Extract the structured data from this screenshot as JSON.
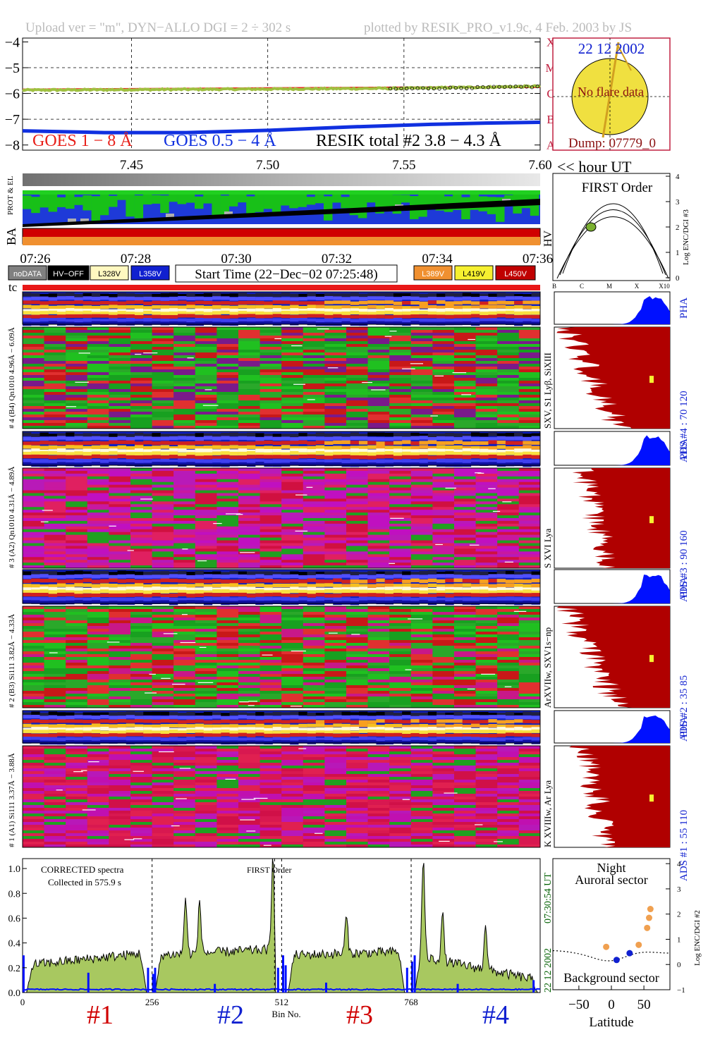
{
  "header": {
    "left": "Upload ver = \"m\", DYN−ALLO DGI = 2 ÷ 302 s",
    "right": "plotted by RESIK_PRO_v1.9c, 4 Feb. 2003 by JS"
  },
  "colors": {
    "goes_long": "#e8201a",
    "goes_short": "#1030e0",
    "resik_green": "#9fc040",
    "spectrum_fill": "#a8c860",
    "pha_blue": "#0010ff",
    "ads_red": "#b00000",
    "date_blue": "#1020d0",
    "dump_brown": "#8a1010",
    "sun_yellow": "#f0e040",
    "frame_red": "#c02040",
    "green_ut": "#006000"
  },
  "chart_data": [
    {
      "type": "line",
      "name": "lightcurves",
      "legend": [
        "GOES 1 − 8 Å",
        "GOES 0.5 − 4 Å",
        "RESIK total #2  3.8 − 4.3 Å"
      ],
      "x_ticks": [
        7.45,
        7.5,
        7.55,
        7.6
      ],
      "x_tick_labels": [
        "7.45",
        "7.50",
        "7.55",
        "7.60"
      ],
      "xlabel": "<< hour UT",
      "xlim": [
        7.41,
        7.6
      ],
      "ylim": [
        -8.2,
        -3.85
      ],
      "y_ticks": [
        -4,
        -5,
        -6,
        -7,
        -8
      ],
      "y_tick_labels": [
        "−4",
        "−5",
        "−6",
        "−7",
        "−8"
      ],
      "right_ticks": [
        "X",
        "M",
        "C",
        "B",
        "A"
      ],
      "series": [
        {
          "name": "GOES 1 − 8 Å",
          "x": [
            7.41,
            7.45,
            7.5,
            7.55,
            7.6
          ],
          "y": [
            -5.85,
            -5.83,
            -5.8,
            -5.77,
            -5.75
          ]
        },
        {
          "name": "GOES 0.5 − 4 Å",
          "x": [
            7.41,
            7.44,
            7.47,
            7.5,
            7.53,
            7.56,
            7.58,
            7.6
          ],
          "y": [
            -7.45,
            -7.52,
            -7.52,
            -7.43,
            -7.3,
            -7.2,
            -7.15,
            -7.12
          ]
        },
        {
          "name": "RESIK total #2  3.8 − 4.3 Å",
          "x": [
            7.41,
            7.45,
            7.5,
            7.55,
            7.6
          ],
          "y": [
            -5.87,
            -5.85,
            -5.83,
            -5.8,
            -5.72
          ]
        }
      ]
    },
    {
      "type": "scatter",
      "name": "sun_disc",
      "date": "22 12 2002",
      "note": "No flare data",
      "dump": "Dump: 07779_0"
    },
    {
      "type": "line",
      "name": "first_order",
      "title": "FIRST Order",
      "ylabel": "Log ENC/DGI #3",
      "y_ticks": [
        "0",
        "1",
        "2",
        "3",
        "4"
      ],
      "x_ticks": [
        "B",
        "C",
        "M",
        "X",
        "X10"
      ]
    },
    {
      "type": "heatmap",
      "name": "status_strips",
      "axis_labels": [
        "PROT & EL",
        "BA",
        "HV"
      ],
      "time_ticks": [
        "07:26",
        "07:28",
        "07:30",
        "07:32",
        "07:34",
        "07:36"
      ],
      "legend_left": [
        "noDATA",
        "HV−OFF",
        "L328V",
        "L358V"
      ],
      "legend_right": [
        "L389V",
        "L419V",
        "L450V"
      ],
      "start_time": "Start Time (22−Dec−02 07:25:48)",
      "tc": "tc"
    },
    {
      "type": "heatmap",
      "name": "spectrograms",
      "channels": [
        {
          "pha_label": "# 4 (B4) Qn1010 4.96Å − 6.09Å",
          "right_label": "SXV, S1 Lyβ, SiXIII",
          "ads": "ADS #4 :   70  120",
          "pha": "PHA"
        },
        {
          "pha_label": "# 3 (A2) Qn1010 4.31Å − 4.89Å",
          "right_label": "S XVI Lya",
          "ads": "ADS #3 :   90  160",
          "pha": "PHA"
        },
        {
          "pha_label": "# 2 (B3) Si111 3.82Å − 4.33Å",
          "right_label": "ArXVIIw, SXV1s−np",
          "ads": "ADS #2 :   35  85",
          "pha": "PHA"
        },
        {
          "pha_label": "# 1 (A1) Si111 3.37Å − 3.88Å",
          "right_label": "K XVIIIw, Ar Lya",
          "ads": "ADS #1 :   55  110",
          "pha": "PHA"
        }
      ]
    },
    {
      "type": "area",
      "name": "corrected_spectra",
      "note1": "CORRECTED spectra",
      "note2": "Collected in   575.9 s",
      "first_order": "FIRST Order",
      "y_ticks": [
        "0.0",
        "0.2",
        "0.4",
        "0.6",
        "0.8",
        "1.0"
      ],
      "ylim": [
        0,
        1.08
      ],
      "xlim": [
        0,
        1023
      ],
      "x_ticks": [
        "0",
        "256",
        "512",
        "768"
      ],
      "xlabel": "Bin No.",
      "channel_labels": [
        "#1",
        "#2",
        "#3",
        "#4"
      ],
      "ut": "07:30:54 UT",
      "date": "22 12 2002"
    },
    {
      "type": "scatter",
      "name": "latitude",
      "title1": "Night",
      "title2": "Auroral sector",
      "bottom_label": "Background sector",
      "xlabel": "Latitude",
      "ylabel": "Log ENC/DGI #2",
      "x_ticks": [
        "−50",
        "0",
        "50"
      ],
      "y_ticks": [
        "−1",
        "0",
        "1",
        "2",
        "3",
        "4"
      ],
      "orange_points": [
        [
          -8,
          0.7
        ],
        [
          42,
          0.78
        ],
        [
          55,
          1.45
        ],
        [
          58,
          1.85
        ],
        [
          60,
          2.2
        ]
      ],
      "blue_points": [
        [
          8,
          0.18
        ],
        [
          28,
          0.45
        ]
      ]
    }
  ]
}
